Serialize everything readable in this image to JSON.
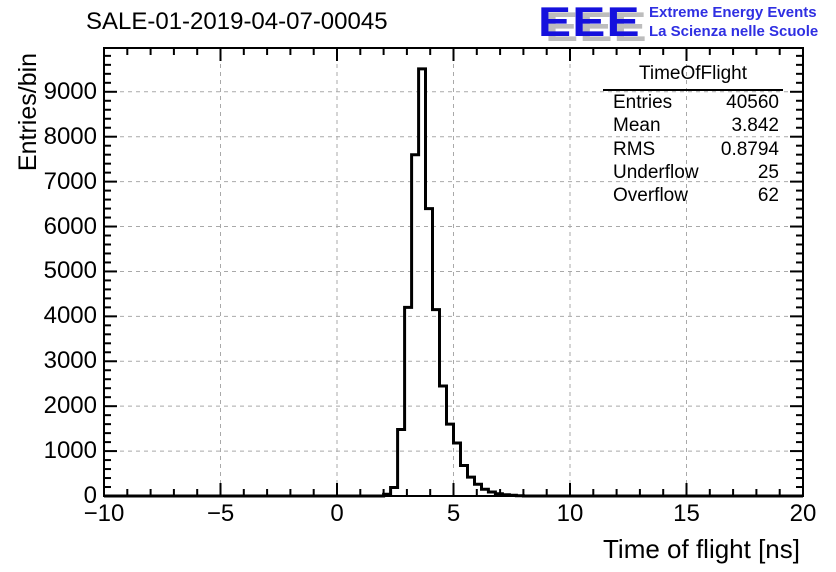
{
  "page": {
    "background": "#ffffff"
  },
  "header": {
    "title": "SALE-01-2019-04-07-00045",
    "logo": {
      "acronym": "EEE",
      "line1": "Extreme Energy Events",
      "line2": "La Scienza nelle Scuole",
      "acronym_color": "#1511dd",
      "text_color": "#2f2fe2",
      "shadow_color": "#bdbdbd"
    }
  },
  "stats_box": {
    "title": "TimeOfFlight",
    "rows": [
      {
        "label": "Entries",
        "value": "40560"
      },
      {
        "label": "Mean",
        "value": "3.842"
      },
      {
        "label": "RMS",
        "value": "0.8794"
      },
      {
        "label": "Underflow",
        "value": "25"
      },
      {
        "label": "Overflow",
        "value": "62"
      }
    ]
  },
  "chart_data": {
    "type": "bar",
    "subtype": "step-histogram",
    "title": "SALE-01-2019-04-07-00045",
    "xlabel": "Time of flight [ns]",
    "ylabel": "Entries/bin",
    "xlim": [
      -10,
      20
    ],
    "ylim": [
      0,
      9975
    ],
    "grid": true,
    "legend_position": "none",
    "x_major_ticks": [
      -10,
      -5,
      0,
      5,
      10,
      15,
      20
    ],
    "x_tick_labels": [
      "−10",
      "−5",
      "0",
      "5",
      "10",
      "15",
      "20"
    ],
    "x_minor_step": 1,
    "y_major_ticks": [
      0,
      1000,
      2000,
      3000,
      4000,
      5000,
      6000,
      7000,
      8000,
      9000
    ],
    "y_tick_labels": [
      "0",
      "1000",
      "2000",
      "3000",
      "4000",
      "5000",
      "6000",
      "7000",
      "8000",
      "9000"
    ],
    "y_minor_step": 200,
    "x_grid": [
      -5,
      0,
      5,
      10,
      15
    ],
    "y_grid": [
      1000,
      2000,
      3000,
      4000,
      5000,
      6000,
      7000,
      8000,
      9000
    ],
    "bin_start": 2.0,
    "bin_width": 0.3,
    "bin_counts": [
      40,
      190,
      1480,
      4200,
      7600,
      9510,
      6400,
      4150,
      2450,
      1600,
      1180,
      680,
      420,
      260,
      150,
      90,
      50,
      30,
      15,
      5
    ],
    "line_color": "#000000",
    "grid_color": "#a9a9a9",
    "frame_color": "#000000",
    "stats": {
      "name": "TimeOfFlight",
      "entries": 40560,
      "mean": 3.842,
      "rms": 0.8794,
      "underflow": 25,
      "overflow": 62
    }
  }
}
